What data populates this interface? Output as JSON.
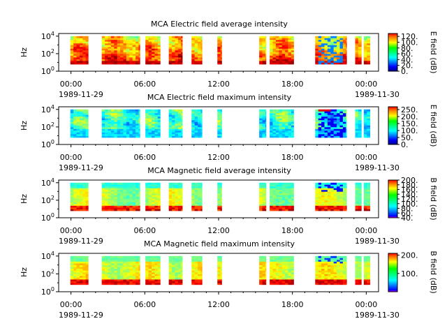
{
  "chart_data": [
    {
      "type": "heatmap",
      "title": "MCA  Electric field average intensity",
      "ylabel": "Hz",
      "colorbar_label": "E field (dB)",
      "colorbar_ticks": [
        "0.",
        "20.",
        "40.",
        "60.",
        "80.",
        "100.",
        "120."
      ],
      "colorbar_range": [
        0,
        130
      ],
      "y_ticks": [
        "10^0",
        "10^2",
        "10^4"
      ],
      "y_range_log10": [
        0,
        4.3
      ],
      "x_ticks": [
        "00:00",
        "06:00",
        "12:00",
        "18:00",
        "00:00"
      ],
      "x_date_left": "1989-11-29",
      "x_date_right": "1989-11-30",
      "x_range_hours": [
        -1,
        25
      ],
      "profile": "e_avg"
    },
    {
      "type": "heatmap",
      "title": "MCA  Electric field maximum intensity",
      "ylabel": "Hz",
      "colorbar_label": "E field (dB)",
      "colorbar_ticks": [
        "0.",
        "50.",
        "100.",
        "150.",
        "200.",
        "250."
      ],
      "colorbar_range": [
        0,
        270
      ],
      "y_ticks": [
        "10^0",
        "10^2",
        "10^4"
      ],
      "y_range_log10": [
        0,
        4.3
      ],
      "x_ticks": [
        "00:00",
        "06:00",
        "12:00",
        "18:00",
        "00:00"
      ],
      "x_date_left": "1989-11-29",
      "x_date_right": "1989-11-30",
      "x_range_hours": [
        -1,
        25
      ],
      "profile": "e_max"
    },
    {
      "type": "heatmap",
      "title": "MCA  Magnetic field average intensity",
      "ylabel": "Hz",
      "colorbar_label": "B field (dB)",
      "colorbar_ticks": [
        "40.",
        "60.",
        "80.",
        "100.",
        "120.",
        "140.",
        "160.",
        "180.",
        "200."
      ],
      "colorbar_range": [
        40,
        200
      ],
      "y_ticks": [
        "10^0",
        "10^2",
        "10^4"
      ],
      "y_range_log10": [
        0,
        4.3
      ],
      "x_ticks": [
        "00:00",
        "06:00",
        "12:00",
        "18:00",
        "00:00"
      ],
      "x_date_left": "1989-11-29",
      "x_date_right": "1989-11-30",
      "x_range_hours": [
        -1,
        25
      ],
      "profile": "b_avg"
    },
    {
      "type": "heatmap",
      "title": "MCA  Magnetic field maximum intensity",
      "ylabel": "Hz",
      "colorbar_label": "B field (dB)",
      "colorbar_ticks": [
        "100.",
        "200."
      ],
      "colorbar_range": [
        0,
        210
      ],
      "y_ticks": [
        "10^0",
        "10^2",
        "10^4"
      ],
      "y_range_log10": [
        0,
        4.3
      ],
      "x_ticks": [
        "00:00",
        "06:00",
        "12:00",
        "18:00",
        "00:00"
      ],
      "x_date_left": "1989-11-29",
      "x_date_right": "1989-11-30",
      "x_range_hours": [
        -1,
        25
      ],
      "profile": "b_max"
    }
  ],
  "data_segments_hours": [
    [
      -0.05,
      1.4
    ],
    [
      2.5,
      5.6
    ],
    [
      6.05,
      7.25
    ],
    [
      7.95,
      9.05
    ],
    [
      9.8,
      10.65
    ],
    [
      11.9,
      12.25
    ],
    [
      15.3,
      15.85
    ],
    [
      16.15,
      18.1
    ],
    [
      19.85,
      22.4
    ],
    [
      23.1,
      23.6
    ],
    [
      23.8,
      24.3
    ]
  ],
  "band_log10_range": [
    0.8,
    4.0
  ]
}
